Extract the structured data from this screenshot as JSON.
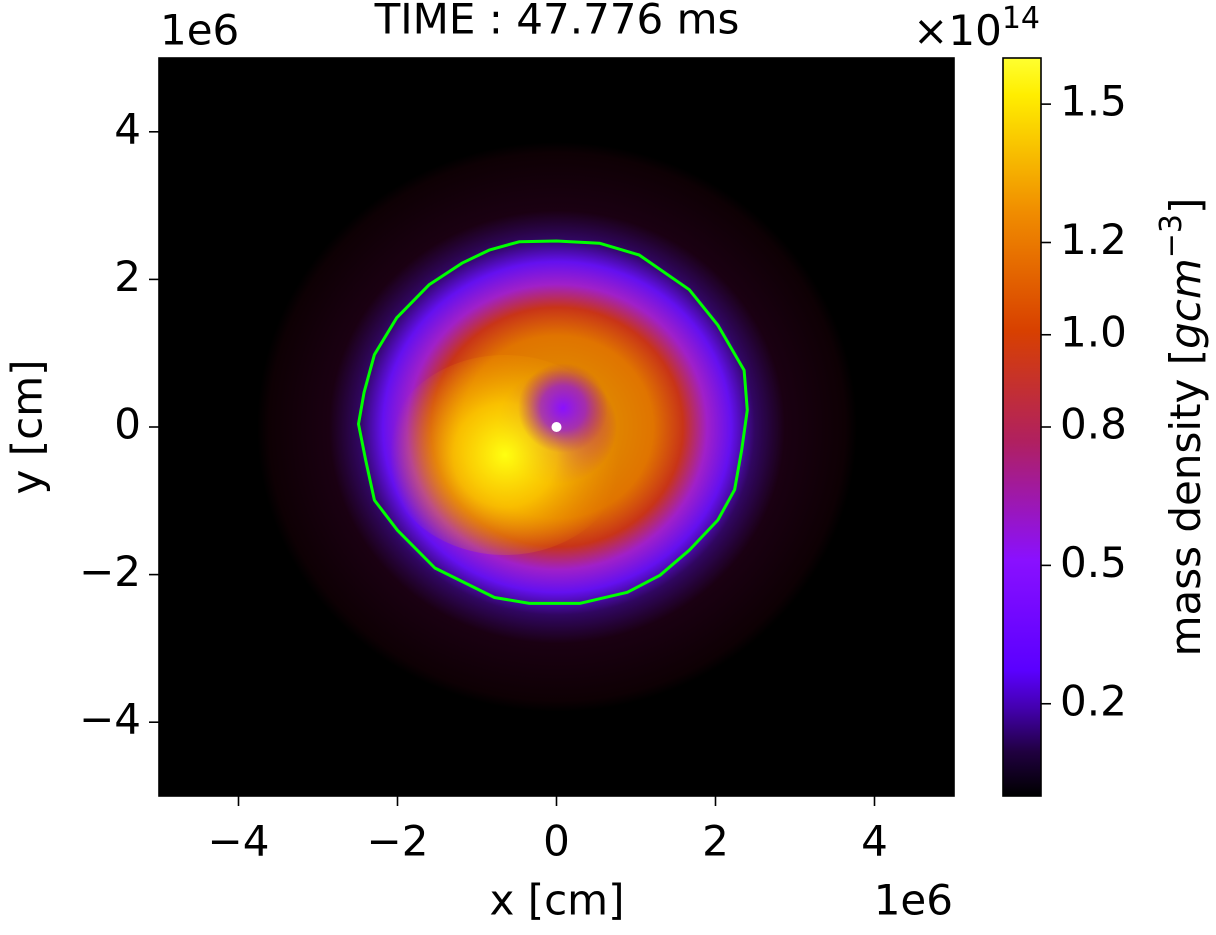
{
  "chart_data": {
    "type": "heatmap",
    "title": "TIME : 47.776 ms",
    "x_label": "x [cm]",
    "y_label": "y [cm]",
    "x_offset": "1e6",
    "y_offset": "1e6",
    "xlim": [
      -5,
      5
    ],
    "ylim": [
      -5,
      5
    ],
    "xticks": [
      {
        "value": -4,
        "label": "−4"
      },
      {
        "value": -2,
        "label": "−2"
      },
      0,
      2,
      4
    ],
    "yticks": [
      {
        "value": -4,
        "label": "−4"
      },
      {
        "value": -2,
        "label": "−2"
      },
      0,
      2,
      4
    ],
    "contour": {
      "color": "#00ff00",
      "x": [
        0,
        -0.47,
        -0.84,
        -1.19,
        -1.6,
        -2.01,
        -2.29,
        -2.42,
        -2.49,
        -2.4,
        -2.29,
        -2.0,
        -1.53,
        -0.78,
        -0.34,
        0.29,
        0.89,
        1.3,
        1.67,
        2.03,
        2.24,
        2.33,
        2.4,
        2.36,
        2.03,
        1.67,
        1.04,
        0.54
      ],
      "y": [
        2.52,
        2.51,
        2.4,
        2.22,
        1.93,
        1.48,
        0.98,
        0.47,
        0.04,
        -0.45,
        -0.99,
        -1.4,
        -1.91,
        -2.31,
        -2.39,
        -2.39,
        -2.24,
        -2.01,
        -1.67,
        -1.26,
        -0.85,
        -0.31,
        0.23,
        0.77,
        1.38,
        1.86,
        2.33,
        2.49
      ]
    },
    "marker": {
      "color": "#ffffff",
      "x": 0,
      "y": 0
    },
    "colorbar": {
      "label": "mass density [",
      "label_unit": "gcm",
      "label_exponent": "−3",
      "label_end": "]",
      "offset": "×10",
      "offset_exponent": "14",
      "lim": [
        0,
        1.6
      ],
      "ticks": [
        0.2,
        0.5,
        0.8,
        {
          "value": 1,
          "label": "1.0"
        },
        1.2,
        1.5
      ]
    }
  }
}
